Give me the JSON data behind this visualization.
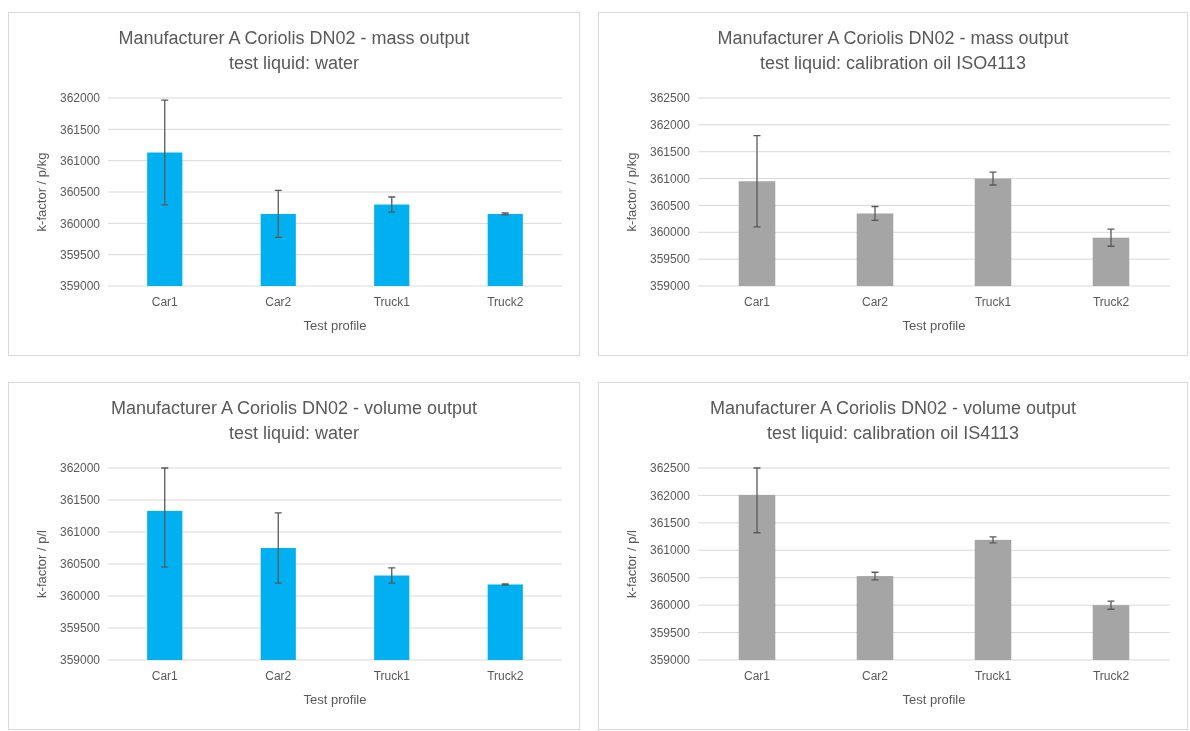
{
  "chart_data": [
    {
      "type": "bar",
      "title": "Manufacturer A Coriolis DN02 - mass output",
      "subtitle": "test liquid: water",
      "xlabel": "Test profile",
      "ylabel": "k-factor / p/kg",
      "categories": [
        "Car1",
        "Car2",
        "Truck1",
        "Truck2"
      ],
      "values": [
        361130,
        360150,
        360300,
        360150
      ],
      "errors": [
        835,
        375,
        120,
        15
      ],
      "color": "#00b0f0",
      "ylim": [
        359000,
        362000
      ],
      "yticks": [
        359000,
        359500,
        360000,
        360500,
        361000,
        361500,
        362000
      ],
      "grid": "y"
    },
    {
      "type": "bar",
      "title": "Manufacturer A Coriolis DN02 - mass output",
      "subtitle": "test liquid: calibration oil ISO4113",
      "xlabel": "Test profile",
      "ylabel": "k-factor / p/kg",
      "categories": [
        "Car1",
        "Car2",
        "Truck1",
        "Truck2"
      ],
      "values": [
        360950,
        360350,
        361000,
        359900
      ],
      "errors": [
        850,
        130,
        120,
        160
      ],
      "color": "#a5a5a5",
      "ylim": [
        359000,
        362500
      ],
      "yticks": [
        359000,
        359500,
        360000,
        360500,
        361000,
        361500,
        362000,
        362500
      ],
      "grid": "y"
    },
    {
      "type": "bar",
      "title": "Manufacturer A Coriolis DN02 - volume output",
      "subtitle": "test liquid: water",
      "xlabel": "Test profile",
      "ylabel": "k-factor / p/l",
      "categories": [
        "Car1",
        "Car2",
        "Truck1",
        "Truck2"
      ],
      "values": [
        361330,
        360750,
        360320,
        360180
      ],
      "errors": [
        [
          360450,
          362000
        ],
        550,
        120,
        10
      ],
      "color": "#00b0f0",
      "ylim": [
        359000,
        362000
      ],
      "yticks": [
        359000,
        359500,
        360000,
        360500,
        361000,
        361500,
        362000
      ],
      "grid": "y"
    },
    {
      "type": "bar",
      "title": "Manufacturer A Coriolis DN02 - volume output",
      "subtitle": "test liquid: calibration oil IS4113",
      "xlabel": "Test profile",
      "ylabel": "k-factor / p/l",
      "categories": [
        "Car1",
        "Car2",
        "Truck1",
        "Truck2"
      ],
      "values": [
        362010,
        360530,
        361190,
        360000
      ],
      "errors": [
        [
          361320,
          362500
        ],
        70,
        55,
        75
      ],
      "color": "#a5a5a5",
      "ylim": [
        359000,
        362500
      ],
      "yticks": [
        359000,
        359500,
        360000,
        360500,
        361000,
        361500,
        362000,
        362500
      ],
      "grid": "y"
    }
  ]
}
